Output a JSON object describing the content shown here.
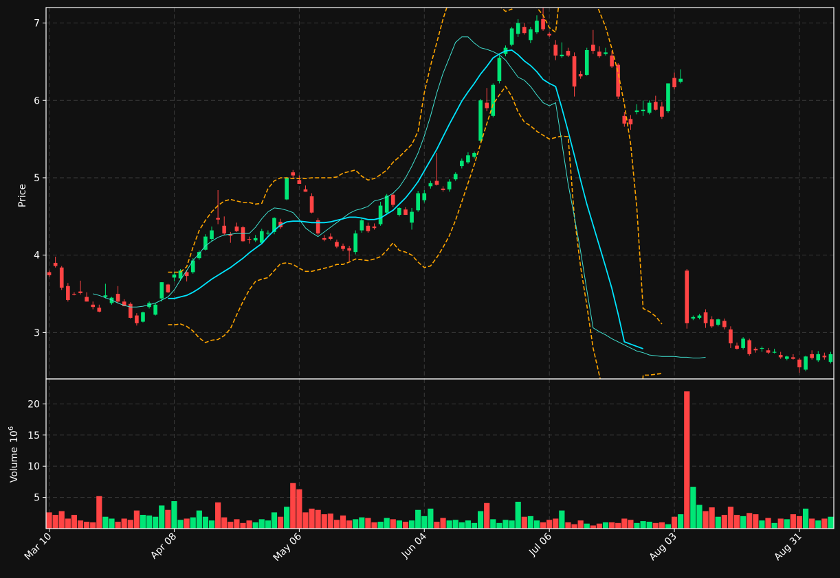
{
  "chart_data": {
    "type": "candlestick",
    "colors": {
      "background": "#111111",
      "up": "#00e676",
      "down": "#ff4444",
      "ma_fast": "#40e0d0",
      "ma_slow": "#00e5ff",
      "bands": "#ffa500",
      "grid": "#3a3a3a",
      "text": "#ffffff"
    },
    "price_panel": {
      "ylabel": "Price",
      "ylim": [
        2.4,
        7.2
      ],
      "yticks": [
        3,
        4,
        5,
        6,
        7
      ]
    },
    "volume_panel": {
      "ylabel": "Volume",
      "ylabel_exp": "10",
      "ylabel_sup": "6",
      "ylim": [
        0,
        24
      ],
      "yticks": [
        5,
        10,
        15,
        20
      ]
    },
    "x_ticks": [
      {
        "index": 0,
        "label": "Mar 10"
      },
      {
        "index": 20,
        "label": "Apr 08"
      },
      {
        "index": 40,
        "label": "May 06"
      },
      {
        "index": 60,
        "label": "Jun 04"
      },
      {
        "index": 80,
        "label": "Jul 06"
      },
      {
        "index": 100,
        "label": "Aug 03"
      },
      {
        "index": 120,
        "label": "Aug 31"
      }
    ],
    "n_bars": 126,
    "ohlc": [
      [
        3.78,
        3.8,
        3.72,
        3.74
      ],
      [
        3.9,
        3.98,
        3.84,
        3.86
      ],
      [
        3.84,
        3.86,
        3.55,
        3.58
      ],
      [
        3.6,
        3.64,
        3.4,
        3.42
      ],
      [
        3.5,
        3.52,
        3.48,
        3.49
      ],
      [
        3.53,
        3.67,
        3.49,
        3.51
      ],
      [
        3.46,
        3.52,
        3.4,
        3.4
      ],
      [
        3.36,
        3.4,
        3.3,
        3.33
      ],
      [
        3.32,
        3.36,
        3.26,
        3.27
      ],
      [
        3.46,
        3.63,
        3.44,
        3.48
      ],
      [
        3.38,
        3.46,
        3.36,
        3.45
      ],
      [
        3.5,
        3.6,
        3.38,
        3.4
      ],
      [
        3.4,
        3.43,
        3.34,
        3.34
      ],
      [
        3.37,
        3.39,
        3.18,
        3.19
      ],
      [
        3.22,
        3.25,
        3.09,
        3.12
      ],
      [
        3.14,
        3.27,
        3.13,
        3.26
      ],
      [
        3.33,
        3.4,
        3.31,
        3.38
      ],
      [
        3.23,
        3.38,
        3.22,
        3.36
      ],
      [
        3.44,
        3.65,
        3.4,
        3.65
      ],
      [
        3.62,
        3.63,
        3.51,
        3.52
      ],
      [
        3.71,
        3.78,
        3.66,
        3.75
      ],
      [
        3.7,
        3.82,
        3.67,
        3.8
      ],
      [
        3.78,
        3.81,
        3.66,
        3.73
      ],
      [
        3.78,
        3.96,
        3.76,
        3.93
      ],
      [
        3.96,
        4.06,
        3.94,
        4.04
      ],
      [
        4.07,
        4.27,
        4.06,
        4.24
      ],
      [
        4.21,
        4.37,
        4.18,
        4.32
      ],
      [
        4.48,
        4.84,
        4.4,
        4.46
      ],
      [
        4.38,
        4.5,
        4.26,
        4.28
      ],
      [
        4.27,
        4.3,
        4.16,
        4.25
      ],
      [
        4.37,
        4.42,
        4.3,
        4.31
      ],
      [
        4.36,
        4.38,
        4.17,
        4.18
      ],
      [
        4.21,
        4.24,
        4.15,
        4.2
      ],
      [
        4.19,
        4.26,
        4.17,
        4.22
      ],
      [
        4.16,
        4.34,
        4.14,
        4.31
      ],
      [
        4.28,
        4.32,
        4.26,
        4.29
      ],
      [
        4.3,
        4.49,
        4.27,
        4.48
      ],
      [
        4.43,
        4.47,
        4.34,
        4.36
      ],
      [
        4.72,
        5.01,
        4.71,
        5.0
      ],
      [
        5.07,
        5.1,
        5.0,
        5.03
      ],
      [
        4.97,
        5.03,
        4.94,
        4.92
      ],
      [
        4.85,
        4.9,
        4.82,
        4.82
      ],
      [
        4.76,
        4.8,
        4.54,
        4.55
      ],
      [
        4.45,
        4.48,
        4.26,
        4.28
      ],
      [
        4.22,
        4.26,
        4.18,
        4.2
      ],
      [
        4.24,
        4.28,
        4.19,
        4.21
      ],
      [
        4.17,
        4.2,
        4.09,
        4.11
      ],
      [
        4.12,
        4.15,
        4.05,
        4.08
      ],
      [
        4.09,
        4.12,
        3.92,
        4.06
      ],
      [
        4.04,
        4.32,
        4.01,
        4.28
      ],
      [
        4.32,
        4.48,
        4.29,
        4.45
      ],
      [
        4.38,
        4.42,
        4.29,
        4.31
      ],
      [
        4.37,
        4.41,
        4.33,
        4.35
      ],
      [
        4.4,
        4.69,
        4.38,
        4.64
      ],
      [
        4.55,
        4.79,
        4.53,
        4.77
      ],
      [
        4.78,
        4.8,
        4.62,
        4.65
      ],
      [
        4.52,
        4.62,
        4.5,
        4.61
      ],
      [
        4.59,
        4.62,
        4.52,
        4.52
      ],
      [
        4.42,
        4.61,
        4.33,
        4.56
      ],
      [
        4.58,
        4.83,
        4.56,
        4.8
      ],
      [
        4.71,
        4.84,
        4.68,
        4.8
      ],
      [
        4.89,
        4.96,
        4.86,
        4.93
      ],
      [
        4.96,
        5.32,
        4.9,
        4.91
      ],
      [
        4.86,
        4.89,
        4.82,
        4.84
      ],
      [
        4.85,
        4.98,
        4.82,
        4.95
      ],
      [
        4.98,
        5.07,
        4.96,
        5.05
      ],
      [
        5.15,
        5.25,
        5.12,
        5.22
      ],
      [
        5.2,
        5.33,
        5.18,
        5.29
      ],
      [
        5.27,
        5.34,
        5.25,
        5.32
      ],
      [
        5.48,
        6.02,
        5.46,
        6.0
      ],
      [
        5.97,
        6.16,
        5.86,
        5.9
      ],
      [
        5.8,
        6.22,
        5.78,
        6.2
      ],
      [
        6.25,
        6.58,
        6.22,
        6.55
      ],
      [
        6.6,
        6.71,
        6.57,
        6.68
      ],
      [
        6.72,
        6.95,
        6.7,
        6.93
      ],
      [
        6.86,
        7.05,
        6.82,
        7.0
      ],
      [
        6.95,
        7.0,
        6.85,
        6.87
      ],
      [
        6.78,
        6.95,
        6.74,
        6.92
      ],
      [
        6.88,
        7.1,
        6.86,
        7.03
      ],
      [
        7.05,
        7.2,
        6.9,
        6.92
      ],
      [
        6.86,
        6.88,
        6.82,
        6.84
      ],
      [
        6.72,
        6.78,
        6.52,
        6.58
      ],
      [
        6.57,
        6.75,
        6.55,
        6.59
      ],
      [
        6.64,
        6.68,
        6.56,
        6.58
      ],
      [
        6.57,
        6.62,
        6.05,
        6.18
      ],
      [
        6.34,
        6.38,
        6.28,
        6.31
      ],
      [
        6.33,
        6.68,
        6.32,
        6.65
      ],
      [
        6.72,
        6.91,
        6.6,
        6.64
      ],
      [
        6.63,
        6.7,
        6.55,
        6.57
      ],
      [
        6.6,
        6.68,
        6.58,
        6.62
      ],
      [
        6.58,
        6.64,
        6.42,
        6.44
      ],
      [
        6.46,
        6.48,
        6.02,
        6.05
      ],
      [
        5.8,
        5.85,
        5.66,
        5.7
      ],
      [
        5.76,
        5.81,
        5.62,
        5.69
      ],
      [
        5.85,
        5.95,
        5.82,
        5.87
      ],
      [
        5.86,
        6.0,
        5.8,
        5.88
      ],
      [
        5.84,
        6.0,
        5.82,
        5.97
      ],
      [
        5.98,
        6.06,
        5.87,
        5.88
      ],
      [
        5.92,
        5.98,
        5.76,
        5.79
      ],
      [
        5.86,
        6.22,
        5.84,
        6.22
      ],
      [
        6.29,
        6.36,
        6.14,
        6.17
      ],
      [
        6.24,
        6.4,
        6.22,
        6.28
      ],
      [
        3.8,
        3.82,
        3.05,
        3.12
      ],
      [
        3.18,
        3.22,
        3.16,
        3.2
      ],
      [
        3.19,
        3.24,
        3.17,
        3.22
      ],
      [
        3.26,
        3.3,
        3.06,
        3.12
      ],
      [
        3.17,
        3.21,
        3.06,
        3.08
      ],
      [
        3.1,
        3.18,
        3.08,
        3.17
      ],
      [
        3.15,
        3.18,
        3.04,
        3.07
      ],
      [
        3.04,
        3.08,
        2.8,
        2.86
      ],
      [
        2.83,
        2.87,
        2.78,
        2.79
      ],
      [
        2.8,
        2.94,
        2.78,
        2.92
      ],
      [
        2.9,
        2.92,
        2.7,
        2.72
      ],
      [
        2.79,
        2.81,
        2.74,
        2.77
      ],
      [
        2.79,
        2.82,
        2.75,
        2.8
      ],
      [
        2.77,
        2.8,
        2.72,
        2.74
      ],
      [
        2.75,
        2.79,
        2.73,
        2.75
      ],
      [
        2.71,
        2.75,
        2.66,
        2.68
      ],
      [
        2.66,
        2.7,
        2.64,
        2.69
      ],
      [
        2.68,
        2.72,
        2.65,
        2.66
      ],
      [
        2.65,
        2.67,
        2.48,
        2.55
      ],
      [
        2.52,
        2.7,
        2.5,
        2.69
      ],
      [
        2.72,
        2.77,
        2.65,
        2.67
      ],
      [
        2.64,
        2.76,
        2.62,
        2.72
      ],
      [
        2.7,
        2.74,
        2.65,
        2.68
      ],
      [
        2.62,
        2.75,
        2.6,
        2.72
      ]
    ],
    "volume": [
      2.6,
      2.2,
      2.8,
      1.6,
      2.2,
      1.3,
      1.1,
      1.0,
      5.2,
      1.9,
      1.6,
      1.1,
      1.6,
      1.4,
      2.9,
      2.2,
      2.1,
      1.9,
      3.7,
      3.0,
      4.4,
      1.4,
      1.6,
      1.8,
      2.9,
      1.9,
      1.3,
      4.2,
      1.8,
      1.1,
      1.5,
      0.9,
      1.3,
      1.0,
      1.5,
      1.3,
      2.6,
      1.9,
      3.5,
      7.3,
      6.3,
      2.6,
      3.2,
      3.0,
      2.3,
      2.4,
      1.4,
      2.1,
      1.3,
      1.5,
      1.8,
      1.7,
      1.0,
      1.1,
      1.7,
      1.5,
      1.3,
      1.1,
      1.3,
      3.0,
      2.0,
      3.2,
      1.1,
      1.7,
      1.3,
      1.4,
      1.0,
      1.3,
      0.9,
      2.8,
      4.1,
      1.5,
      0.9,
      1.4,
      1.3,
      4.3,
      1.9,
      2.0,
      1.3,
      1.0,
      1.4,
      1.6,
      2.9,
      1.0,
      0.7,
      1.3,
      0.8,
      0.5,
      0.8,
      1.0,
      1.0,
      0.9,
      1.6,
      1.4,
      0.9,
      1.2,
      1.1,
      0.9,
      1.0,
      0.7,
      1.9,
      2.3,
      22.0,
      6.7,
      3.8,
      2.8,
      3.4,
      1.9,
      2.2,
      3.5,
      2.2,
      2.0,
      2.5,
      2.3,
      1.3,
      1.7,
      0.9,
      1.6,
      1.5,
      2.3,
      2.0,
      3.2,
      1.6,
      1.3,
      1.6,
      1.9
    ],
    "ma_fast_start": 7,
    "ma_fast": [
      3.5,
      3.48,
      3.45,
      3.42,
      3.38,
      3.35,
      3.33,
      3.33,
      3.34,
      3.36,
      3.38,
      3.42,
      3.46,
      3.55,
      3.68,
      3.8,
      3.93,
      4.02,
      4.12,
      4.18,
      4.23,
      4.26,
      4.27,
      4.28,
      4.28,
      4.28,
      4.36,
      4.47,
      4.56,
      4.61,
      4.6,
      4.58,
      4.55,
      4.46,
      4.35,
      4.29,
      4.24,
      4.3,
      4.36,
      4.42,
      4.48,
      4.54,
      4.58,
      4.6,
      4.63,
      4.7,
      4.72,
      4.75,
      4.8,
      4.88,
      5.0,
      5.15,
      5.32,
      5.54,
      5.8,
      6.1,
      6.35,
      6.55,
      6.75,
      6.82,
      6.82,
      6.74,
      6.68,
      6.66,
      6.63,
      6.59,
      6.52,
      6.41,
      6.3,
      6.26,
      6.18,
      6.07,
      5.97,
      5.93,
      5.97,
      5.45,
      4.92,
      4.5,
      4.05,
      3.55,
      3.06,
      3.01,
      2.97,
      2.92,
      2.88,
      2.84,
      2.8,
      2.76,
      2.74,
      2.71,
      2.7,
      2.69,
      2.69,
      2.69,
      2.68,
      2.68,
      2.67,
      2.67,
      2.68
    ],
    "ma_slow_start": 19,
    "ma_slow": [
      3.44,
      3.44,
      3.46,
      3.48,
      3.52,
      3.57,
      3.63,
      3.69,
      3.74,
      3.79,
      3.84,
      3.9,
      3.96,
      4.03,
      4.09,
      4.15,
      4.24,
      4.32,
      4.39,
      4.43,
      4.44,
      4.44,
      4.43,
      4.42,
      4.42,
      4.42,
      4.43,
      4.45,
      4.47,
      4.49,
      4.49,
      4.48,
      4.46,
      4.46,
      4.48,
      4.53,
      4.58,
      4.66,
      4.74,
      4.84,
      4.95,
      5.09,
      5.23,
      5.37,
      5.53,
      5.69,
      5.84,
      5.99,
      6.11,
      6.22,
      6.34,
      6.44,
      6.55,
      6.6,
      6.64,
      6.65,
      6.59,
      6.51,
      6.45,
      6.37,
      6.27,
      6.22,
      6.18,
      5.9,
      5.6,
      5.29,
      4.97,
      4.66,
      4.39,
      4.12,
      3.85,
      3.57,
      3.24,
      2.88,
      2.85,
      2.82,
      2.79
    ],
    "band_start": 19,
    "band_upper": [
      3.78,
      3.78,
      3.78,
      3.85,
      4.1,
      4.32,
      4.45,
      4.56,
      4.64,
      4.7,
      4.72,
      4.7,
      4.68,
      4.68,
      4.66,
      4.67,
      4.86,
      4.96,
      5.0,
      5.0,
      4.99,
      4.99,
      4.99,
      5.0,
      5.0,
      5.0,
      5.0,
      5.01,
      5.06,
      5.08,
      5.1,
      5.02,
      4.97,
      4.99,
      5.04,
      5.1,
      5.2,
      5.27,
      5.35,
      5.43,
      5.6,
      6.1,
      6.45,
      6.75,
      7.05,
      7.3,
      7.4,
      7.6,
      7.7,
      7.7,
      7.6,
      7.48,
      7.33,
      7.22,
      7.15,
      7.18,
      7.26,
      7.3,
      7.28,
      7.2,
      7.1,
      6.94,
      6.88,
      7.6,
      7.9,
      7.7,
      7.6,
      7.5,
      7.35,
      7.15,
      6.95,
      6.67,
      6.36,
      5.95,
      5.44,
      4.6,
      3.31,
      3.27,
      3.21,
      3.11
    ],
    "band_lower": [
      3.1,
      3.1,
      3.11,
      3.08,
      3.02,
      2.93,
      2.87,
      2.9,
      2.91,
      2.96,
      3.05,
      3.23,
      3.4,
      3.55,
      3.66,
      3.69,
      3.71,
      3.8,
      3.89,
      3.9,
      3.88,
      3.83,
      3.79,
      3.79,
      3.81,
      3.83,
      3.85,
      3.88,
      3.88,
      3.91,
      3.95,
      3.94,
      3.93,
      3.95,
      3.98,
      4.06,
      4.16,
      4.06,
      4.04,
      4.0,
      3.91,
      3.84,
      3.86,
      3.97,
      4.1,
      4.25,
      4.45,
      4.69,
      4.93,
      5.17,
      5.44,
      5.7,
      5.95,
      6.07,
      6.18,
      6.05,
      5.85,
      5.72,
      5.67,
      5.6,
      5.55,
      5.5,
      5.52,
      5.54,
      5.53,
      4.5,
      3.85,
      3.35,
      2.8,
      2.45,
      2.1,
      1.8,
      1.5,
      1.3,
      1.2,
      1.1,
      2.45,
      2.45,
      2.46,
      2.47
    ]
  }
}
